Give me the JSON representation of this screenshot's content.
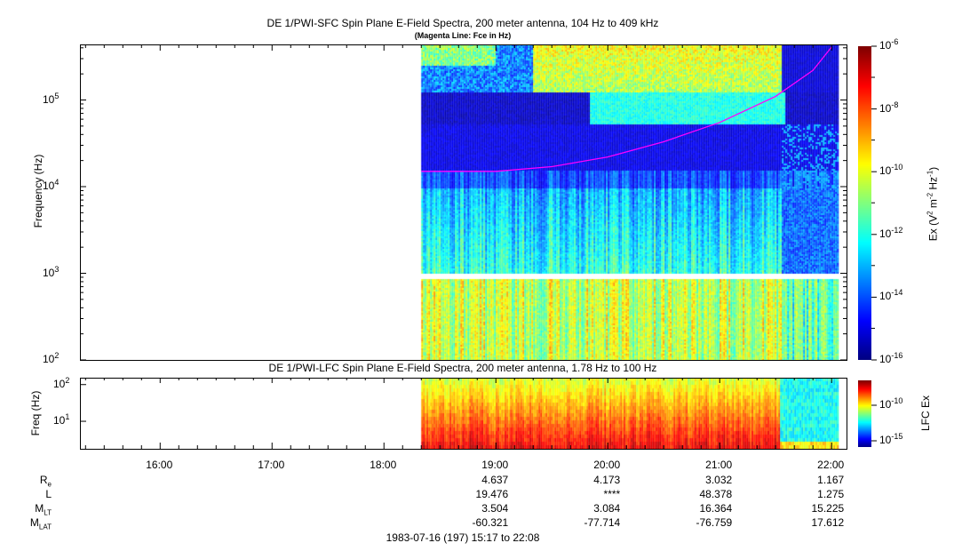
{
  "chart_data": [
    {
      "type": "heatmap",
      "title": "DE 1/PWI-SFC  Spin Plane E-Field Spectra, 200 meter antenna, 104 Hz to 409 kHz",
      "subtitle": "(Magenta Line: Fce in Hz)",
      "ylabel": "Frequency (Hz)",
      "yscale": "log",
      "ylim": [
        100,
        409000
      ],
      "yticks": [
        {
          "base": "10",
          "exp": "2"
        },
        {
          "base": "10",
          "exp": "3"
        },
        {
          "base": "10",
          "exp": "4"
        },
        {
          "base": "10",
          "exp": "5"
        }
      ],
      "data_start": "18:20",
      "data_end": "22:03",
      "gap_hz": [
        900,
        1000
      ],
      "colorbar": {
        "label": "Ex (V² m⁻² Hz⁻¹)",
        "label_parts": [
          "Ex (V",
          "2",
          " m",
          "-2",
          " Hz",
          "-1",
          ")"
        ],
        "range_log10": [
          -16,
          -6
        ],
        "ticks": [
          {
            "base": "10",
            "exp": "-6"
          },
          {
            "base": "10",
            "exp": "-8"
          },
          {
            "base": "10",
            "exp": "-10"
          },
          {
            "base": "10",
            "exp": "-12"
          },
          {
            "base": "10",
            "exp": "-14"
          },
          {
            "base": "10",
            "exp": "-16"
          }
        ]
      },
      "fce_line": {
        "color": "#ff00ff",
        "times": [
          "18:20",
          "19:00",
          "19:30",
          "20:00",
          "20:30",
          "21:00",
          "21:30",
          "21:50",
          "22:00"
        ],
        "hz": [
          15000,
          15000,
          17000,
          22000,
          33000,
          55000,
          110000,
          220000,
          409000
        ]
      }
    },
    {
      "type": "heatmap",
      "title": "DE 1/PWI-LFC  Spin Plane E-Field Spectra, 200 meter antenna, 1.78 Hz to 100 Hz",
      "ylabel": "Freq (Hz)",
      "yscale": "log",
      "ylim": [
        1.78,
        100
      ],
      "yticks": [
        {
          "base": "10",
          "exp": "2"
        },
        {
          "base": "10",
          "exp": "1"
        }
      ],
      "colorbar": {
        "label": "LFC Ex",
        "range_log10": [
          -17,
          -6
        ],
        "ticks": [
          {
            "base": "10",
            "exp": "-10"
          },
          {
            "base": "10",
            "exp": "-15"
          }
        ]
      }
    }
  ],
  "xaxis": {
    "ticks": [
      "16:00",
      "17:00",
      "18:00",
      "19:00",
      "20:00",
      "21:00",
      "22:00"
    ],
    "range": [
      "15:17",
      "22:08"
    ]
  },
  "ephemeris": {
    "rows": [
      {
        "label": "R",
        "sub": "e",
        "values": [
          "",
          "",
          "",
          "4.637",
          "4.173",
          "3.032",
          "1.167"
        ]
      },
      {
        "label": "L",
        "sub": "",
        "values": [
          "",
          "",
          "",
          "19.476",
          "****",
          "48.378",
          "1.275"
        ]
      },
      {
        "label": "M",
        "sub": "LT",
        "values": [
          "",
          "",
          "",
          "3.504",
          "3.084",
          "16.364",
          "15.225"
        ]
      },
      {
        "label": "M",
        "sub": "LAT",
        "values": [
          "",
          "",
          "",
          "-60.321",
          "-77.714",
          "-76.759",
          "17.612"
        ]
      }
    ]
  },
  "footer": "1983-07-16 (197) 15:17 to 22:08"
}
